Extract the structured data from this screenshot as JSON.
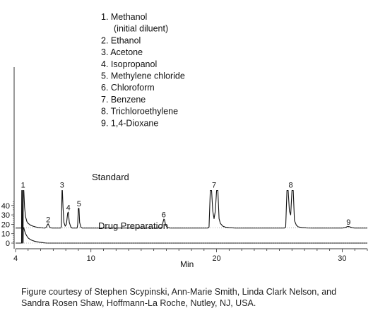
{
  "chart_data": {
    "type": "line",
    "xlabel": "Min",
    "xlim": [
      4,
      32
    ],
    "x_ticks": [
      "4",
      "10",
      "20",
      "30"
    ],
    "y_ticks": [
      "0",
      "10",
      "20",
      "30",
      "40"
    ],
    "series": [
      {
        "name": "Standard",
        "baseline": 16,
        "points": [
          [
            4.0,
            16
          ],
          [
            4.48,
            16
          ],
          [
            4.5,
            56
          ],
          [
            4.53,
            56
          ],
          [
            4.55,
            16
          ],
          [
            4.6,
            16
          ],
          [
            4.62,
            56
          ],
          [
            4.66,
            56
          ],
          [
            4.72,
            38
          ],
          [
            4.8,
            28
          ],
          [
            4.9,
            23
          ],
          [
            5.0,
            21
          ],
          [
            5.2,
            19
          ],
          [
            5.4,
            18
          ],
          [
            5.6,
            17.2
          ],
          [
            5.8,
            16.6
          ],
          [
            6.0,
            16.3
          ],
          [
            6.2,
            16.1
          ],
          [
            6.35,
            16
          ],
          [
            6.45,
            17
          ],
          [
            6.55,
            20
          ],
          [
            6.6,
            20.5
          ],
          [
            6.65,
            19
          ],
          [
            6.75,
            16.5
          ],
          [
            6.9,
            16
          ],
          [
            7.6,
            16
          ],
          [
            7.65,
            18
          ],
          [
            7.7,
            56
          ],
          [
            7.73,
            56
          ],
          [
            7.78,
            38
          ],
          [
            7.85,
            22
          ],
          [
            7.95,
            18
          ],
          [
            8.05,
            20
          ],
          [
            8.15,
            32
          ],
          [
            8.2,
            33
          ],
          [
            8.28,
            22
          ],
          [
            8.4,
            17
          ],
          [
            8.5,
            16
          ],
          [
            8.9,
            16
          ],
          [
            8.95,
            20
          ],
          [
            9.0,
            37
          ],
          [
            9.05,
            37
          ],
          [
            9.1,
            22
          ],
          [
            9.2,
            17
          ],
          [
            9.3,
            16
          ],
          [
            15.5,
            16
          ],
          [
            15.65,
            17
          ],
          [
            15.75,
            23
          ],
          [
            15.8,
            25.5
          ],
          [
            15.85,
            25
          ],
          [
            15.95,
            19
          ],
          [
            16.1,
            16.5
          ],
          [
            16.3,
            16
          ],
          [
            19.3,
            16
          ],
          [
            19.4,
            17
          ],
          [
            19.5,
            56
          ],
          [
            19.6,
            56
          ],
          [
            19.7,
            34
          ],
          [
            19.8,
            26
          ],
          [
            19.9,
            34
          ],
          [
            20.0,
            56
          ],
          [
            20.1,
            56
          ],
          [
            20.2,
            26
          ],
          [
            20.3,
            21
          ],
          [
            20.5,
            18
          ],
          [
            20.7,
            17
          ],
          [
            21.0,
            16.4
          ],
          [
            21.5,
            16
          ],
          [
            25.4,
            16
          ],
          [
            25.5,
            17
          ],
          [
            25.6,
            56
          ],
          [
            25.7,
            56
          ],
          [
            25.8,
            34
          ],
          [
            25.9,
            30
          ],
          [
            26.0,
            56
          ],
          [
            26.1,
            56
          ],
          [
            26.2,
            24
          ],
          [
            26.35,
            19
          ],
          [
            26.5,
            17.3
          ],
          [
            26.8,
            16.5
          ],
          [
            27.2,
            16.1
          ],
          [
            27.6,
            16
          ],
          [
            30.0,
            16
          ],
          [
            30.2,
            16.4
          ],
          [
            30.4,
            17.5
          ],
          [
            30.5,
            17.7
          ],
          [
            30.6,
            17.3
          ],
          [
            30.8,
            16.3
          ],
          [
            31.0,
            16
          ],
          [
            32,
            16
          ]
        ]
      },
      {
        "name": "Drug Preparation",
        "baseline": 0,
        "points": [
          [
            4.0,
            0
          ],
          [
            4.48,
            0
          ],
          [
            4.5,
            56
          ],
          [
            4.53,
            56
          ],
          [
            4.55,
            0
          ],
          [
            4.6,
            0
          ],
          [
            4.62,
            16
          ],
          [
            4.65,
            16.5
          ],
          [
            4.72,
            13
          ],
          [
            4.8,
            10
          ],
          [
            4.9,
            7.5
          ],
          [
            5.0,
            5.5
          ],
          [
            5.15,
            4
          ],
          [
            5.3,
            3
          ],
          [
            5.5,
            2
          ],
          [
            5.7,
            1.4
          ],
          [
            5.9,
            1
          ],
          [
            6.1,
            0.6
          ],
          [
            6.3,
            0.2
          ],
          [
            6.5,
            0
          ],
          [
            32,
            0
          ]
        ]
      }
    ],
    "peak_labels": [
      {
        "text": "1",
        "x": 4.6,
        "y": 59
      },
      {
        "text": "2",
        "x": 6.6,
        "y": 22
      },
      {
        "text": "3",
        "x": 7.7,
        "y": 59
      },
      {
        "text": "4",
        "x": 8.2,
        "y": 35
      },
      {
        "text": "5",
        "x": 9.05,
        "y": 39
      },
      {
        "text": "6",
        "x": 15.8,
        "y": 27.5
      },
      {
        "text": "7",
        "x": 19.8,
        "y": 59
      },
      {
        "text": "8",
        "x": 25.9,
        "y": 59
      },
      {
        "text": "9",
        "x": 30.5,
        "y": 19.5
      }
    ],
    "legend": [
      "1.  Methanol",
      "(initial diluent)",
      "2.  Ethanol",
      "3.  Acetone",
      "4.  Isopropanol",
      "5.  Methylene chloride",
      "6.  Chloroform",
      "7.  Benzene",
      "8.  Trichloroethylene",
      "9.  1,4-Dioxane"
    ],
    "legend_placement": "top-center",
    "grid": false
  },
  "caption_lines": [
    "Figure courtesy of Stephen Scypinski, Ann-Marie Smith, Linda Clark Nelson, and",
    "Sandra Rosen Shaw, Hoffmann-La Roche, Nutley, NJ, USA."
  ],
  "colors": {
    "trace": "#111111",
    "axis": "#333333"
  }
}
